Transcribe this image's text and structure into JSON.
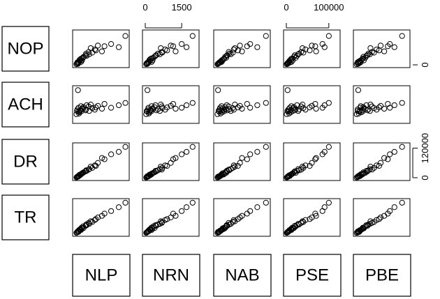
{
  "chart_data": {
    "type": "scatter-matrix",
    "row_variables": [
      {
        "name": "NOP",
        "lim": [
          0,
          100
        ],
        "ticks": [
          0
        ],
        "axis": "right",
        "values": [
          2,
          5,
          3,
          8,
          6,
          10,
          7,
          12,
          15,
          9,
          18,
          14,
          20,
          25,
          22,
          30,
          28,
          35,
          33,
          40,
          38,
          52,
          48,
          45,
          60,
          42,
          58,
          65,
          55,
          90
        ]
      },
      {
        "name": "ACH",
        "lim": [
          0,
          100
        ],
        "values": [
          20,
          30,
          95,
          35,
          28,
          22,
          40,
          30,
          26,
          45,
          33,
          38,
          29,
          42,
          36,
          32,
          48,
          35,
          30,
          44,
          39,
          50,
          34,
          41,
          46,
          37,
          52,
          40,
          48,
          55
        ]
      },
      {
        "name": "DR",
        "lim": [
          0,
          130000
        ],
        "ticks": [
          0,
          120000
        ],
        "axis": "right",
        "values": [
          1000,
          3000,
          4000,
          5000,
          6000,
          8000,
          7000,
          10000,
          12000,
          14000,
          13000,
          18000,
          16000,
          22000,
          20000,
          26000,
          28000,
          30000,
          35000,
          33000,
          40000,
          45000,
          50000,
          48000,
          60000,
          80000,
          75000,
          95000,
          105000,
          125000
        ]
      },
      {
        "name": "TR",
        "lim": [
          0,
          100
        ],
        "values": [
          2,
          3,
          5,
          6,
          5,
          8,
          9,
          10,
          12,
          11,
          14,
          16,
          18,
          17,
          22,
          24,
          26,
          28,
          30,
          33,
          36,
          38,
          42,
          45,
          50,
          55,
          62,
          70,
          82,
          96
        ]
      }
    ],
    "column_variables": [
      {
        "name": "NLP",
        "lim": [
          0,
          100
        ],
        "values": [
          2,
          3,
          5,
          4,
          6,
          7,
          6,
          9,
          8,
          11,
          10,
          13,
          12,
          16,
          15,
          20,
          22,
          21,
          27,
          26,
          33,
          30,
          38,
          40,
          44,
          52,
          57,
          70,
          85,
          98
        ]
      },
      {
        "name": "NRN",
        "lim": [
          0,
          2100
        ],
        "ticks": [
          0,
          1500
        ],
        "axis": "top",
        "values": [
          40,
          60,
          90,
          120,
          80,
          150,
          130,
          200,
          170,
          260,
          210,
          300,
          250,
          380,
          330,
          450,
          420,
          520,
          600,
          680,
          700,
          640,
          820,
          900,
          1050,
          1250,
          1150,
          1500,
          1700,
          1950
        ]
      },
      {
        "name": "NAB",
        "lim": [
          0,
          100
        ],
        "values": [
          2,
          4,
          3,
          6,
          5,
          8,
          7,
          9,
          11,
          10,
          14,
          12,
          15,
          17,
          19,
          21,
          20,
          25,
          28,
          24,
          32,
          36,
          34,
          42,
          46,
          50,
          60,
          66,
          80,
          97
        ]
      },
      {
        "name": "PSE",
        "lim": [
          0,
          120000
        ],
        "ticks": [
          0,
          100000
        ],
        "axis": "top",
        "values": [
          1000,
          2500,
          3000,
          5000,
          4000,
          6500,
          8000,
          7000,
          10000,
          12000,
          11000,
          15000,
          14000,
          18000,
          22000,
          20000,
          25000,
          30000,
          28000,
          35000,
          40000,
          38000,
          45000,
          55000,
          60000,
          70000,
          68000,
          85000,
          90000,
          100000
        ]
      },
      {
        "name": "PBE",
        "lim": [
          0,
          100
        ],
        "values": [
          1,
          3,
          4,
          3,
          6,
          5,
          8,
          7,
          10,
          9,
          12,
          15,
          13,
          14,
          18,
          22,
          20,
          24,
          27,
          31,
          35,
          28,
          40,
          45,
          48,
          55,
          62,
          66,
          75,
          90
        ]
      }
    ]
  }
}
